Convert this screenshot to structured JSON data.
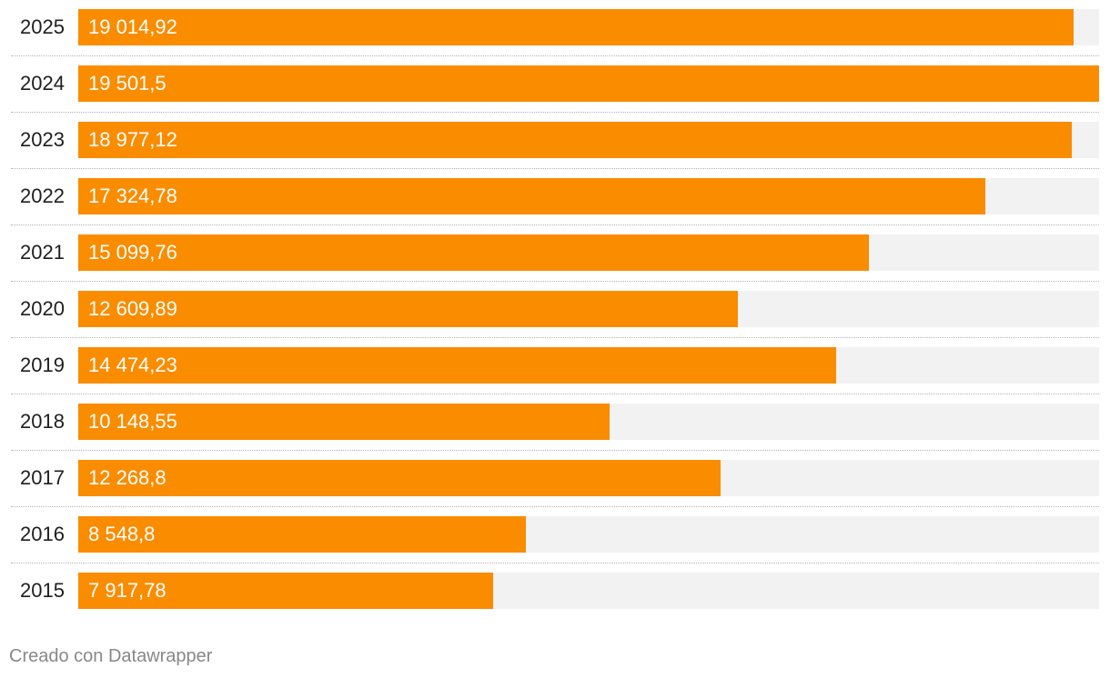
{
  "chart_data": {
    "type": "bar",
    "orientation": "horizontal",
    "title": "",
    "xlabel": "",
    "ylabel": "",
    "categories": [
      "2025",
      "2024",
      "2023",
      "2022",
      "2021",
      "2020",
      "2019",
      "2018",
      "2017",
      "2016",
      "2015"
    ],
    "values": [
      19014.92,
      19501.5,
      18977.12,
      17324.78,
      15099.76,
      12609.89,
      14474.23,
      10148.55,
      12268.8,
      8548.8,
      7917.78
    ],
    "value_labels": [
      "19 014,92",
      "19 501,5",
      "18 977,12",
      "17 324,78",
      "15 099,76",
      "12 609,89",
      "14 474,23",
      "10 148,55",
      "12 268,8",
      "8 548,8",
      "7 917,78"
    ],
    "xlim": [
      0,
      19501.5
    ],
    "bar_color": "#fa8c00",
    "track_color": "#f2f2f2",
    "grid": false
  },
  "footer": {
    "credit": "Creado con Datawrapper"
  }
}
